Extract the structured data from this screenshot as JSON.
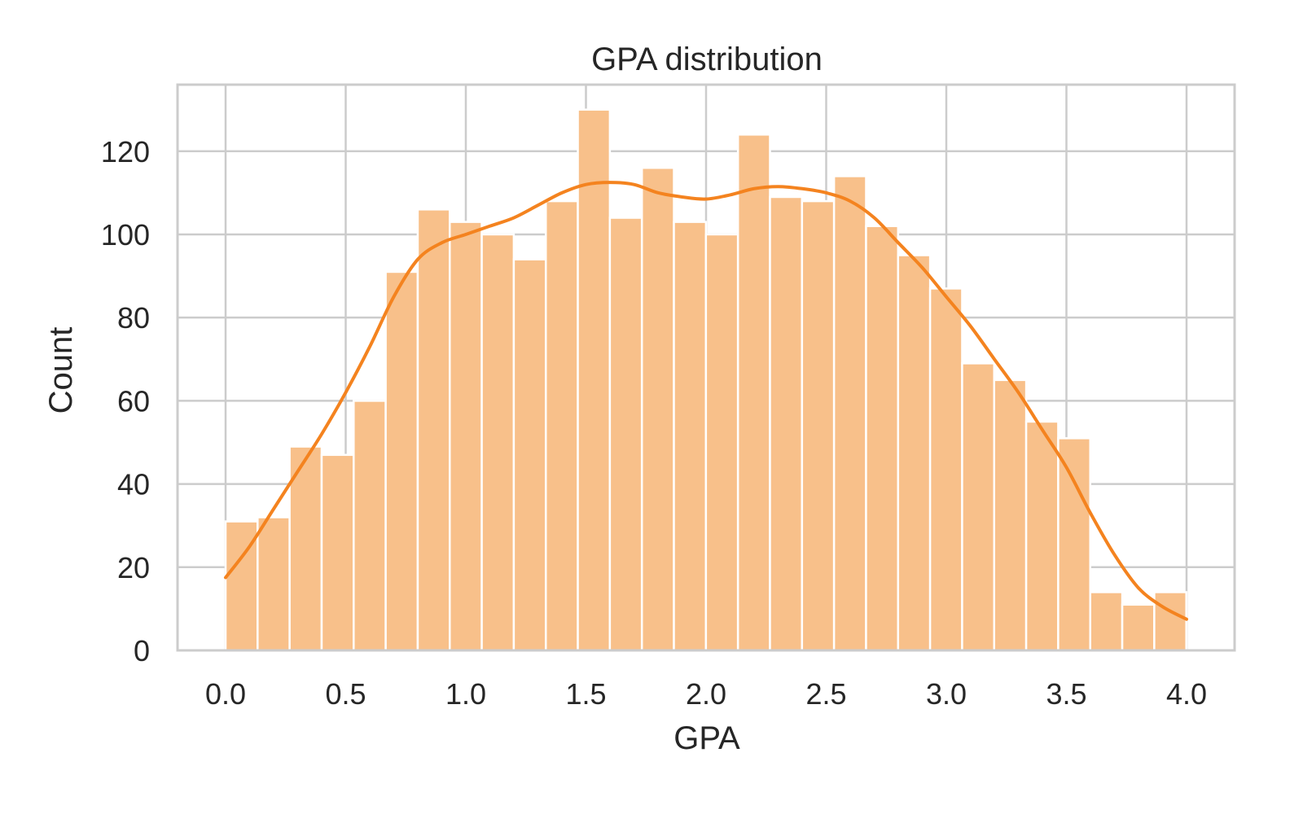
{
  "chart_data": {
    "type": "bar",
    "title": "GPA distribution",
    "xlabel": "GPA",
    "ylabel": "Count",
    "xlim": [
      -0.2,
      4.2
    ],
    "ylim": [
      0,
      136
    ],
    "x_ticks": [
      0.0,
      0.5,
      1.0,
      1.5,
      2.0,
      2.5,
      3.0,
      3.5,
      4.0
    ],
    "x_tick_labels": [
      "0.0",
      "0.5",
      "1.0",
      "1.5",
      "2.0",
      "2.5",
      "3.0",
      "3.5",
      "4.0"
    ],
    "y_ticks": [
      0,
      20,
      40,
      60,
      80,
      100,
      120
    ],
    "y_tick_labels": [
      "0",
      "20",
      "40",
      "60",
      "80",
      "100",
      "120"
    ],
    "grid": true,
    "legend": "none",
    "bin_start": 0.0,
    "bin_width": 0.1333,
    "values": [
      31,
      32,
      49,
      47,
      60,
      91,
      106,
      103,
      100,
      94,
      108,
      130,
      104,
      116,
      103,
      100,
      124,
      109,
      108,
      114,
      102,
      95,
      87,
      69,
      65,
      55,
      51,
      14,
      11,
      14
    ],
    "kde": {
      "x": [
        0.0,
        0.1,
        0.2,
        0.3,
        0.4,
        0.5,
        0.6,
        0.7,
        0.8,
        0.9,
        1.0,
        1.1,
        1.2,
        1.3,
        1.4,
        1.5,
        1.6,
        1.7,
        1.8,
        1.9,
        2.0,
        2.1,
        2.2,
        2.3,
        2.4,
        2.5,
        2.6,
        2.7,
        2.8,
        2.9,
        3.0,
        3.1,
        3.2,
        3.3,
        3.4,
        3.5,
        3.6,
        3.7,
        3.8,
        3.9,
        4.0
      ],
      "y": [
        17.5,
        25,
        34,
        43,
        52,
        62,
        73,
        85,
        94,
        98,
        100,
        102,
        104,
        107,
        110,
        112,
        112.5,
        112,
        110,
        109,
        108.5,
        109.5,
        111,
        111.5,
        111,
        110,
        108,
        104,
        98,
        92,
        85,
        78,
        70,
        62,
        53,
        44,
        33,
        23,
        15,
        10.5,
        7.5
      ]
    },
    "colors": {
      "bar_fill": "#f8c08a",
      "kde_line": "#f4831f"
    }
  }
}
